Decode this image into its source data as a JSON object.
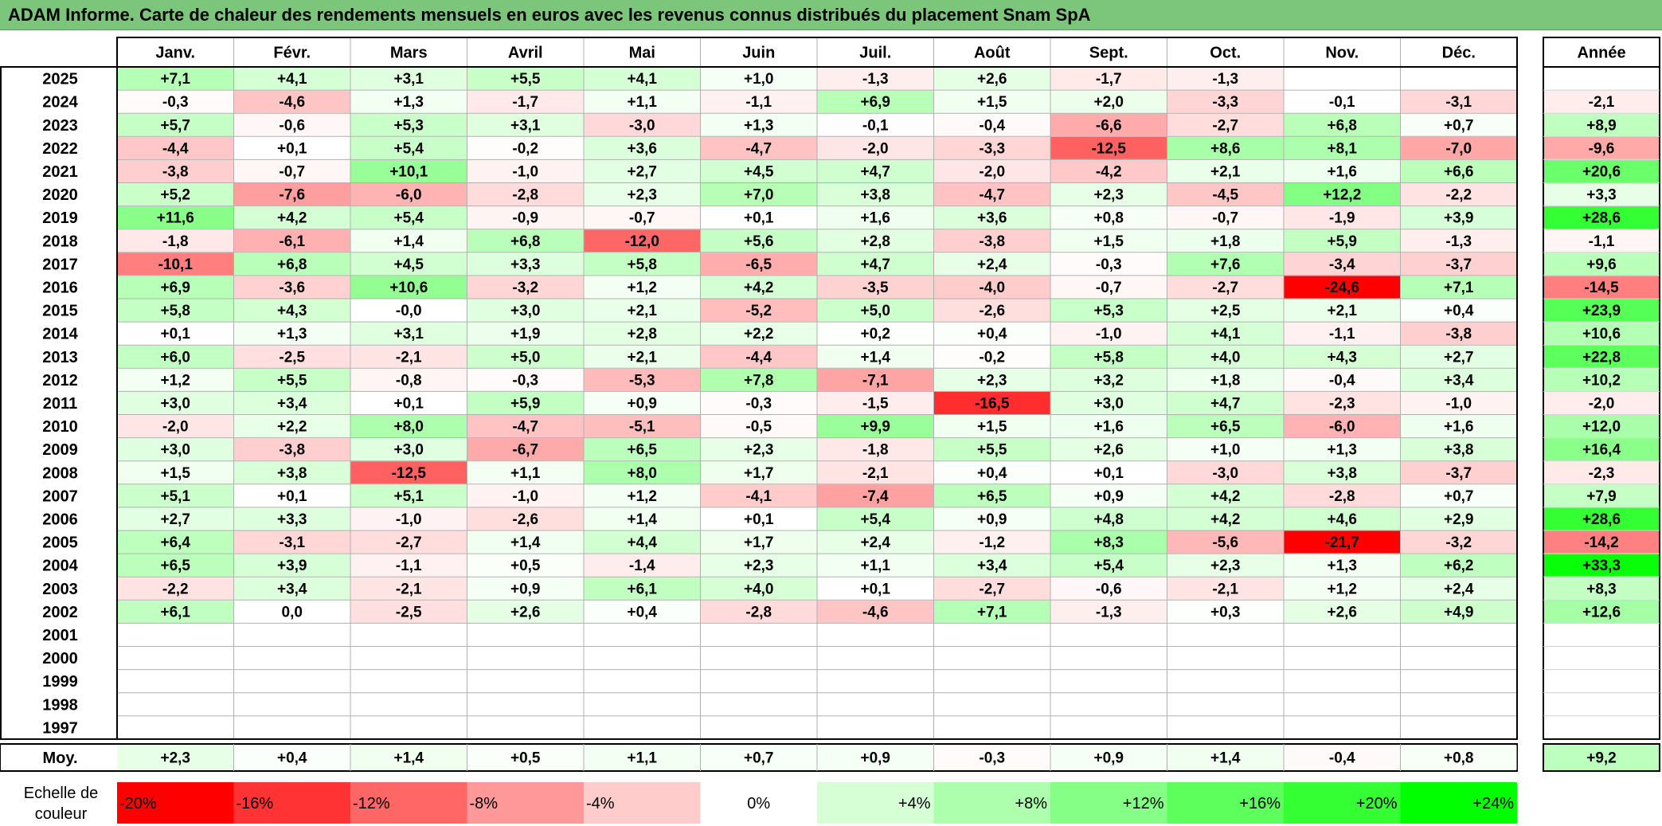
{
  "title": "ADAM Informe. Carte de chaleur des rendements mensuels en euros avec les revenus connus distribués du placement Snam SpA",
  "chart_data": {
    "type": "heatmap",
    "months": [
      "Janv.",
      "Févr.",
      "Mars",
      "Avril",
      "Mai",
      "Juin",
      "Juil.",
      "Août",
      "Sept.",
      "Oct.",
      "Nov.",
      "Déc."
    ],
    "year_header": "Année",
    "avg_label": "Moy.",
    "rows": [
      {
        "year": "2025",
        "months": [
          "+7,1",
          "+4,1",
          "+3,1",
          "+5,5",
          "+4,1",
          "+1,0",
          "-1,3",
          "+2,6",
          "-1,7",
          "-1,3",
          "",
          ""
        ],
        "annual": ""
      },
      {
        "year": "2024",
        "months": [
          "-0,3",
          "-4,6",
          "+1,3",
          "-1,7",
          "+1,1",
          "-1,1",
          "+6,9",
          "+1,5",
          "+2,0",
          "-3,3",
          "-0,1",
          "-3,1"
        ],
        "annual": "-2,1"
      },
      {
        "year": "2023",
        "months": [
          "+5,7",
          "-0,6",
          "+5,3",
          "+3,1",
          "-3,0",
          "+1,3",
          "-0,1",
          "-0,4",
          "-6,6",
          "-2,7",
          "+6,8",
          "+0,7"
        ],
        "annual": "+8,9"
      },
      {
        "year": "2022",
        "months": [
          "-4,4",
          "+0,1",
          "+5,4",
          "-0,2",
          "+3,6",
          "-4,7",
          "-2,0",
          "-3,3",
          "-12,5",
          "+8,6",
          "+8,1",
          "-7,0"
        ],
        "annual": "-9,6"
      },
      {
        "year": "2021",
        "months": [
          "-3,8",
          "-0,7",
          "+10,1",
          "-1,0",
          "+2,7",
          "+4,5",
          "+4,7",
          "-2,0",
          "-4,2",
          "+2,1",
          "+1,6",
          "+6,6"
        ],
        "annual": "+20,6"
      },
      {
        "year": "2020",
        "months": [
          "+5,2",
          "-7,6",
          "-6,0",
          "-2,8",
          "+2,3",
          "+7,0",
          "+3,8",
          "-4,7",
          "+2,3",
          "-4,5",
          "+12,2",
          "-2,2"
        ],
        "annual": "+3,3"
      },
      {
        "year": "2019",
        "months": [
          "+11,6",
          "+4,2",
          "+5,4",
          "-0,9",
          "-0,7",
          "+0,1",
          "+1,6",
          "+3,6",
          "+0,8",
          "-0,7",
          "-1,9",
          "+3,9"
        ],
        "annual": "+28,6"
      },
      {
        "year": "2018",
        "months": [
          "-1,8",
          "-6,1",
          "+1,4",
          "+6,8",
          "-12,0",
          "+5,6",
          "+2,8",
          "-3,8",
          "+1,5",
          "+1,8",
          "+5,9",
          "-1,3"
        ],
        "annual": "-1,1"
      },
      {
        "year": "2017",
        "months": [
          "-10,1",
          "+6,8",
          "+4,5",
          "+3,3",
          "+5,8",
          "-6,5",
          "+4,7",
          "+2,4",
          "-0,3",
          "+7,6",
          "-3,4",
          "-3,7"
        ],
        "annual": "+9,6"
      },
      {
        "year": "2016",
        "months": [
          "+6,9",
          "-3,6",
          "+10,6",
          "-3,2",
          "+1,2",
          "+4,2",
          "-3,5",
          "-4,0",
          "-0,7",
          "-2,7",
          "-24,6",
          "+7,1"
        ],
        "annual": "-14,5"
      },
      {
        "year": "2015",
        "months": [
          "+5,8",
          "+4,3",
          "-0,0",
          "+3,0",
          "+2,1",
          "-5,2",
          "+5,0",
          "-2,6",
          "+5,3",
          "+2,5",
          "+2,1",
          "+0,4"
        ],
        "annual": "+23,9"
      },
      {
        "year": "2014",
        "months": [
          "+0,1",
          "+1,3",
          "+3,1",
          "+1,9",
          "+2,8",
          "+2,2",
          "+0,2",
          "+0,4",
          "-1,0",
          "+4,1",
          "-1,1",
          "-3,8"
        ],
        "annual": "+10,6"
      },
      {
        "year": "2013",
        "months": [
          "+6,0",
          "-2,5",
          "-2,1",
          "+5,0",
          "+2,1",
          "-4,4",
          "+1,4",
          "-0,2",
          "+5,8",
          "+4,0",
          "+4,3",
          "+2,7"
        ],
        "annual": "+22,8"
      },
      {
        "year": "2012",
        "months": [
          "+1,2",
          "+5,5",
          "-0,8",
          "-0,3",
          "-5,3",
          "+7,8",
          "-7,1",
          "+2,3",
          "+3,2",
          "+1,8",
          "-0,4",
          "+3,4"
        ],
        "annual": "+10,2"
      },
      {
        "year": "2011",
        "months": [
          "+3,0",
          "+3,4",
          "+0,1",
          "+5,9",
          "+0,9",
          "-0,3",
          "-1,5",
          "-16,5",
          "+3,0",
          "+4,7",
          "-2,3",
          "-1,0"
        ],
        "annual": "-2,0"
      },
      {
        "year": "2010",
        "months": [
          "-2,0",
          "+2,2",
          "+8,0",
          "-4,7",
          "-5,1",
          "-0,5",
          "+9,9",
          "+1,5",
          "+1,6",
          "+6,5",
          "-6,0",
          "+1,6"
        ],
        "annual": "+12,0"
      },
      {
        "year": "2009",
        "months": [
          "+3,0",
          "-3,8",
          "+3,0",
          "-6,7",
          "+6,5",
          "+2,3",
          "-1,8",
          "+5,5",
          "+2,6",
          "+1,0",
          "+1,3",
          "+3,8"
        ],
        "annual": "+16,4"
      },
      {
        "year": "2008",
        "months": [
          "+1,5",
          "+3,8",
          "-12,5",
          "+1,1",
          "+8,0",
          "+1,7",
          "-2,1",
          "+0,4",
          "+0,1",
          "-3,0",
          "+3,8",
          "-3,7"
        ],
        "annual": "-2,3"
      },
      {
        "year": "2007",
        "months": [
          "+5,1",
          "+0,1",
          "+5,1",
          "-1,0",
          "+1,2",
          "-4,1",
          "-7,4",
          "+6,5",
          "+0,9",
          "+4,2",
          "-2,8",
          "+0,7"
        ],
        "annual": "+7,9"
      },
      {
        "year": "2006",
        "months": [
          "+2,7",
          "+3,3",
          "-1,0",
          "-2,6",
          "+1,4",
          "+0,1",
          "+5,4",
          "+0,9",
          "+4,8",
          "+4,2",
          "+4,6",
          "+2,9"
        ],
        "annual": "+28,6"
      },
      {
        "year": "2005",
        "months": [
          "+6,4",
          "-3,1",
          "-2,7",
          "+1,4",
          "+4,4",
          "+1,7",
          "+2,4",
          "-1,2",
          "+8,3",
          "-5,6",
          "-21,7",
          "-3,2"
        ],
        "annual": "-14,2"
      },
      {
        "year": "2004",
        "months": [
          "+6,5",
          "+3,9",
          "-1,1",
          "+0,5",
          "-1,4",
          "+2,3",
          "+1,1",
          "+3,4",
          "+5,4",
          "+2,3",
          "+1,3",
          "+6,2"
        ],
        "annual": "+33,3"
      },
      {
        "year": "2003",
        "months": [
          "-2,2",
          "+3,4",
          "-2,1",
          "+0,9",
          "+6,1",
          "+4,0",
          "+0,1",
          "-2,7",
          "-0,6",
          "-2,1",
          "+1,2",
          "+2,4"
        ],
        "annual": "+8,3"
      },
      {
        "year": "2002",
        "months": [
          "+6,1",
          "0,0",
          "-2,5",
          "+2,6",
          "+0,4",
          "-2,8",
          "-4,6",
          "+7,1",
          "-1,3",
          "+0,3",
          "+2,6",
          "+4,9"
        ],
        "annual": "+12,6"
      },
      {
        "year": "2001",
        "months": [
          "",
          "",
          "",
          "",
          "",
          "",
          "",
          "",
          "",
          "",
          "",
          ""
        ],
        "annual": ""
      },
      {
        "year": "2000",
        "months": [
          "",
          "",
          "",
          "",
          "",
          "",
          "",
          "",
          "",
          "",
          "",
          ""
        ],
        "annual": ""
      },
      {
        "year": "1999",
        "months": [
          "",
          "",
          "",
          "",
          "",
          "",
          "",
          "",
          "",
          "",
          "",
          ""
        ],
        "annual": ""
      },
      {
        "year": "1998",
        "months": [
          "",
          "",
          "",
          "",
          "",
          "",
          "",
          "",
          "",
          "",
          "",
          ""
        ],
        "annual": ""
      },
      {
        "year": "1997",
        "months": [
          "",
          "",
          "",
          "",
          "",
          "",
          "",
          "",
          "",
          "",
          "",
          ""
        ],
        "annual": ""
      }
    ],
    "average": {
      "months": [
        "+2,3",
        "+0,4",
        "+1,4",
        "+0,5",
        "+1,1",
        "+0,7",
        "+0,9",
        "-0,3",
        "+0,9",
        "+1,4",
        "-0,4",
        "+0,8"
      ],
      "annual": "+9,2"
    },
    "scale_label_line1": "Echelle de",
    "scale_label_line2": "couleur",
    "scale": [
      {
        "label": "-20%",
        "value": -20,
        "color": "#ff0000"
      },
      {
        "label": "-16%",
        "value": -16,
        "color": "#ff3333"
      },
      {
        "label": "-12%",
        "value": -12,
        "color": "#ff6666"
      },
      {
        "label": "-8%",
        "value": -8,
        "color": "#ff9999"
      },
      {
        "label": "-4%",
        "value": -4,
        "color": "#ffcccc"
      },
      {
        "label": "0%",
        "value": 0,
        "color": "#ffffff"
      },
      {
        "label": "+4%",
        "value": 4,
        "color": "#d6ffd6"
      },
      {
        "label": "+8%",
        "value": 8,
        "color": "#adffad"
      },
      {
        "label": "+12%",
        "value": 12,
        "color": "#85ff85"
      },
      {
        "label": "+16%",
        "value": 16,
        "color": "#5cff5c"
      },
      {
        "label": "+20%",
        "value": 20,
        "color": "#33ff33"
      },
      {
        "label": "+24%",
        "value": 24,
        "color": "#00ff00"
      }
    ]
  }
}
